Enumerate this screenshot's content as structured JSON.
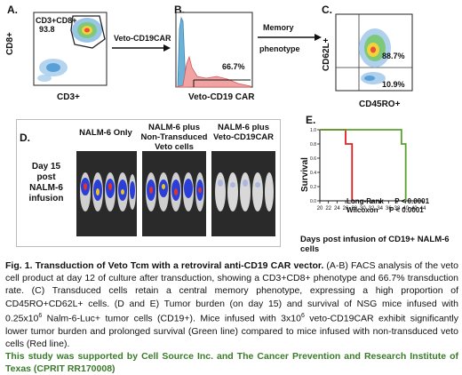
{
  "panelA": {
    "label": "A.",
    "gate_name": "CD3+CD8+",
    "gate_value": "93.8",
    "ylabel": "CD8+",
    "xlabel": "CD3+"
  },
  "arrow1_label": "Veto-CD19CAR",
  "panelB": {
    "label": "B.",
    "percent": "66.7%",
    "xlabel": "Veto-CD19 CAR"
  },
  "arrow2_label_line1": "Memory",
  "arrow2_label_line2": "phenotype",
  "panelC": {
    "label": "C.",
    "ylabel": "CD62L+",
    "xlabel": "CD45RO+",
    "upper_right": "88.7%",
    "lower_right": "10.9%"
  },
  "panelD": {
    "label": "D.",
    "row_label_line1": "Day 15",
    "row_label_line2": "post",
    "row_label_line3": "NALM-6",
    "row_label_line4": "infusion",
    "groups": [
      {
        "line1": "NALM-6 Only",
        "line2": "",
        "line3": ""
      },
      {
        "line1": "NALM-6 plus",
        "line2": "Non-Transduced",
        "line3": "Veto cells"
      },
      {
        "line1": "NALM-6 plus",
        "line2": "Veto-CD19CAR",
        "line3": ""
      }
    ]
  },
  "panelE": {
    "label": "E.",
    "ylabel": "Survival",
    "xlabel": "Days post infusion of CD19+ NALM-6 cells",
    "stat1_name": "Long-Rank",
    "stat1_value": "P < 0.0001",
    "stat2_name": "Wilcoxon",
    "stat2_value": "P < 0.0001",
    "colors": {
      "red": "#e02020",
      "green": "#5aa02c"
    }
  },
  "chart_data": {
    "type": "line",
    "xlabel": "Days post infusion of CD19+ NALM-6 cells",
    "ylabel": "Survival",
    "xlim": [
      20,
      44
    ],
    "ylim": [
      0,
      1.0
    ],
    "x_ticks": [
      "20",
      "22",
      "24",
      "26",
      "28",
      "30",
      "32",
      "34",
      "36",
      "38",
      "40",
      "42",
      "44"
    ],
    "y_ticks": [
      "0.0",
      "0.2",
      "0.4",
      "0.6",
      "0.8",
      "1.0"
    ],
    "series": [
      {
        "color": "#e02020",
        "x": [
          20,
          26,
          26,
          27.5,
          27.5
        ],
        "y": [
          1.0,
          1.0,
          0.8,
          0.8,
          0.0
        ]
      },
      {
        "color": "#5aa02c",
        "x": [
          20,
          39,
          39,
          40,
          40
        ],
        "y": [
          1.0,
          1.0,
          0.8,
          0.8,
          0.0
        ]
      }
    ]
  },
  "caption": {
    "fig_title": "Fig. 1. Transduction of Veto Tcm with a retroviral anti-CD19 CAR vector.",
    "body_1": " (A-B) FACS analysis of the veto cell product at day 12 of culture after transduction, showing a CD3+CD8+ phenotype and 66.7% transduction rate. (C) Transduced cells retain a central memory phenotype, expressing a high proportion of CD45RO+CD62L+ cells. (D and E) Tumor burden (on day 15) and survival of NSG mice infused with 0.25x10",
    "sup_1": "6",
    "body_2": " Nalm-6-Luc+ tumor cells (CD19+). Mice infused with 3x10",
    "sup_2": "6",
    "body_3": " veto-CD19CAR exhibit significantly lower tumor burden and prolonged survival (Green line) compared to mice infused with non-transduced veto cells (Red line).",
    "ack": "This study was supported by Cell Source Inc. and The Cancer Prevention and Research Institute of Texas (CPRIT RR170008)"
  }
}
